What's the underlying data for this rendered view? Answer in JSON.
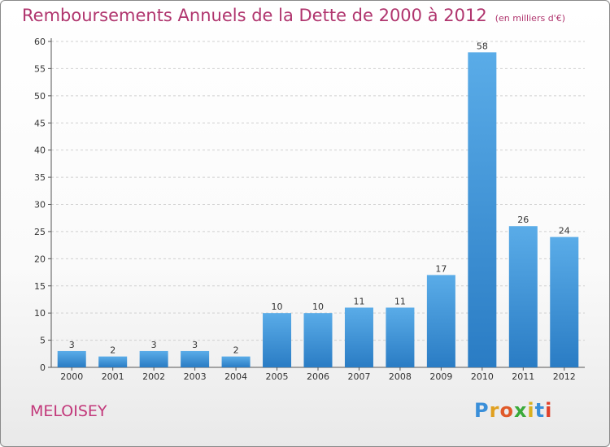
{
  "title": "Remboursements Annuels de la Dette de 2000 à 2012",
  "subtitle": "(en milliers d'€)",
  "city": "MELOISEY",
  "logo": "Proxiti",
  "colors": {
    "title": "#b0356e",
    "bar_light": "#5aace8",
    "bar_dark": "#2a7cc4",
    "grid": "#d0d0d0"
  },
  "chart_data": {
    "type": "bar",
    "title": "Remboursements Annuels de la Dette de 2000 à 2012",
    "subtitle": "(en milliers d'€)",
    "categories": [
      "2000",
      "2001",
      "2002",
      "2003",
      "2004",
      "2005",
      "2006",
      "2007",
      "2008",
      "2009",
      "2010",
      "2011",
      "2012"
    ],
    "values": [
      3,
      2,
      3,
      3,
      2,
      10,
      10,
      11,
      11,
      17,
      58,
      26,
      24
    ],
    "ylim": [
      0,
      60
    ],
    "yticks": [
      0,
      5,
      10,
      15,
      20,
      25,
      30,
      35,
      40,
      45,
      50,
      55,
      60
    ],
    "grid": true,
    "xlabel": "",
    "ylabel": ""
  }
}
